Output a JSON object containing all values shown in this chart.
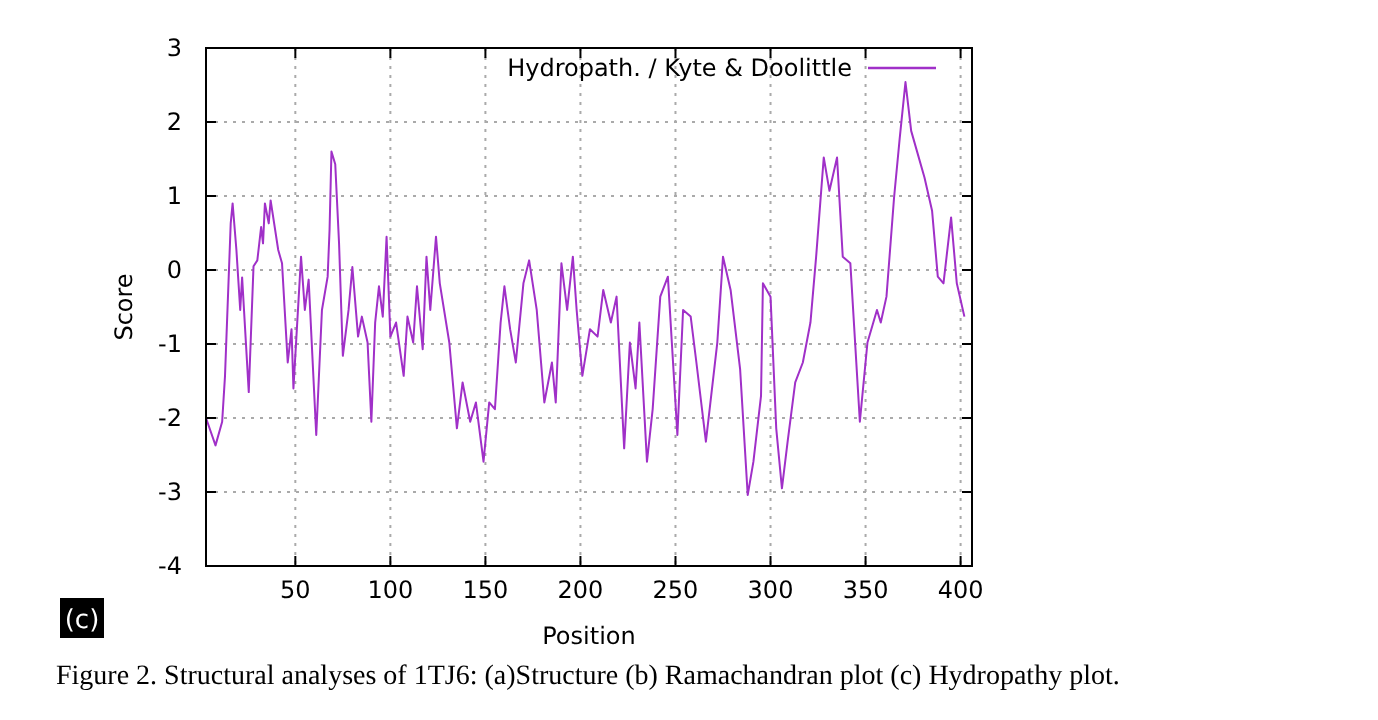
{
  "chart_data": {
    "type": "line",
    "xlabel": "Position",
    "ylabel": "Score",
    "xlim": [
      3,
      406
    ],
    "ylim": [
      -4,
      3
    ],
    "xticks": [
      50,
      100,
      150,
      200,
      250,
      300,
      350,
      400
    ],
    "yticks": [
      -4,
      -3,
      -2,
      -1,
      0,
      1,
      2,
      3
    ],
    "grid": true,
    "legend": "top right",
    "marker": "none",
    "line_style": "solid",
    "annotations": [
      "(c)",
      "Figure 2. Structural analyses of 1TJ6: (a)Structure (b) Ramachandran plot (c) Hydropathy plot."
    ],
    "series": [
      {
        "name": "Hydropath. / Kyte & Doolittle",
        "color": "#a030c8",
        "x": [
          3,
          8,
          11.5,
          13,
          16,
          17,
          19,
          21,
          22,
          25.5,
          28,
          30,
          32,
          33,
          34,
          36,
          37,
          41,
          43,
          46,
          48,
          49,
          53,
          55,
          57,
          61,
          64,
          67,
          68,
          69,
          71,
          73,
          75,
          78,
          80,
          83,
          85,
          88,
          90,
          92,
          94,
          96,
          98,
          100,
          103,
          107,
          109,
          112,
          114,
          117,
          119,
          121,
          124,
          126,
          131,
          135,
          138,
          142,
          145,
          149,
          152,
          155,
          158,
          160,
          163,
          166,
          170,
          173,
          177,
          181,
          185,
          187,
          190,
          193,
          196,
          198,
          201,
          205,
          209,
          212,
          216,
          219,
          223,
          226,
          229,
          231,
          235,
          238,
          242,
          246,
          251,
          254,
          258,
          261,
          266,
          272,
          275,
          279,
          284,
          288,
          291,
          295,
          296,
          300,
          303,
          306,
          309,
          313,
          317,
          321,
          324,
          328,
          331,
          335,
          338,
          342,
          347,
          351,
          356,
          358,
          361,
          365,
          368,
          371,
          374,
          377,
          381,
          385,
          388,
          391,
          395,
          398,
          402
        ],
        "values": [
          -2.0,
          -2.37,
          -2.05,
          -1.43,
          0.63,
          0.9,
          0.27,
          -0.54,
          -0.1,
          -1.65,
          0.05,
          0.13,
          0.58,
          0.36,
          0.9,
          0.63,
          0.94,
          0.27,
          0.09,
          -1.25,
          -0.8,
          -1.6,
          0.18,
          -0.54,
          -0.13,
          -2.23,
          -0.54,
          -0.09,
          0.54,
          1.6,
          1.43,
          0.36,
          -1.16,
          -0.54,
          0.04,
          -0.9,
          -0.63,
          -0.98,
          -2.05,
          -0.71,
          -0.22,
          -0.63,
          0.45,
          -0.9,
          -0.71,
          -1.43,
          -0.63,
          -0.98,
          -0.22,
          -1.07,
          0.18,
          -0.54,
          0.45,
          -0.18,
          -0.98,
          -2.14,
          -1.52,
          -2.05,
          -1.79,
          -2.59,
          -1.79,
          -1.88,
          -0.71,
          -0.22,
          -0.8,
          -1.25,
          -0.18,
          0.13,
          -0.54,
          -1.79,
          -1.25,
          -1.79,
          0.09,
          -0.54,
          0.18,
          -0.54,
          -1.43,
          -0.8,
          -0.9,
          -0.27,
          -0.71,
          -0.36,
          -2.41,
          -0.98,
          -1.6,
          -0.71,
          -2.59,
          -1.88,
          -0.36,
          -0.09,
          -2.23,
          -0.54,
          -0.63,
          -1.25,
          -2.32,
          -0.98,
          0.18,
          -0.27,
          -1.34,
          -3.04,
          -2.59,
          -1.7,
          -0.18,
          -0.36,
          -2.14,
          -2.95,
          -2.32,
          -1.52,
          -1.25,
          -0.71,
          0.18,
          1.52,
          1.07,
          1.52,
          0.18,
          0.09,
          -2.05,
          -0.98,
          -0.54,
          -0.71,
          -0.36,
          0.98,
          1.79,
          2.54,
          1.88,
          1.61,
          1.25,
          0.8,
          -0.09,
          -0.18,
          0.71,
          -0.18,
          -0.63
        ]
      }
    ]
  }
}
